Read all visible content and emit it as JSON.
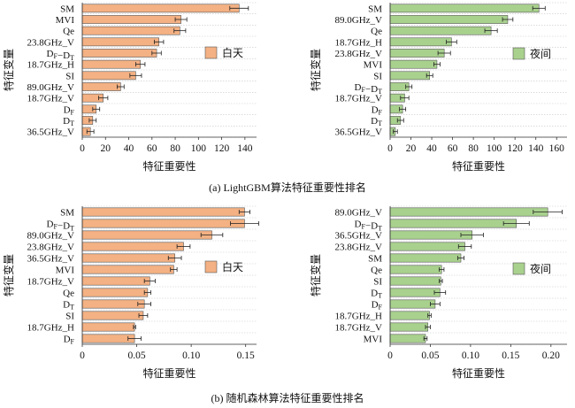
{
  "captions": {
    "a": "(a) LightGBM算法特征重要性排名",
    "b": "(b) 随机森林算法特征重要性排名"
  },
  "colors": {
    "day": "#F4B183",
    "night": "#A9D18E",
    "edge": "#555555",
    "error": "#222222"
  },
  "chart_data": [
    {
      "type": "bar",
      "orientation": "horizontal",
      "xlabel": "特征重要性",
      "ylabel": "特征变量",
      "legend": {
        "label": "白天",
        "placement": "right"
      },
      "xlim": [
        0,
        150
      ],
      "xticks": [
        0,
        20,
        40,
        60,
        80,
        100,
        120,
        140
      ],
      "xticklabels": [
        "0",
        "20",
        "40",
        "60",
        "80",
        "100",
        "120",
        "140"
      ],
      "categories": [
        "SM",
        "MVI",
        "Qe",
        "23.8GHz_V",
        "DF−DT",
        "18.7GHz_H",
        "SI",
        "89.0GHz_V",
        "18.7GHz_V",
        "DF",
        "DT",
        "36.5GHz_V"
      ],
      "values": [
        135,
        85,
        84,
        66,
        64,
        50,
        46,
        33,
        18,
        12,
        9,
        7
      ],
      "errors": [
        8,
        5,
        5,
        4,
        4,
        4,
        5,
        3,
        4,
        3,
        3,
        3
      ]
    },
    {
      "type": "bar",
      "orientation": "horizontal",
      "xlabel": "特征重要性",
      "ylabel": "特征变量",
      "legend": {
        "label": "夜间",
        "placement": "right"
      },
      "xlim": [
        0,
        170
      ],
      "xticks": [
        0,
        20,
        40,
        60,
        80,
        100,
        120,
        140,
        160
      ],
      "xticklabels": [
        "0",
        "20",
        "40",
        "60",
        "80",
        "100",
        "120",
        "140",
        "160"
      ],
      "categories": [
        "SM",
        "89.0GHz_V",
        "Qe",
        "18.7GHz_H",
        "23.8GHz_V",
        "MVI",
        "SI",
        "DF−DT",
        "18.7GHz_V",
        "DF",
        "DT",
        "36.5GHz_V"
      ],
      "values": [
        143,
        113,
        97,
        59,
        52,
        45,
        38,
        18,
        14,
        12,
        10,
        5
      ],
      "errors": [
        6,
        5,
        6,
        5,
        6,
        3,
        3,
        3,
        4,
        3,
        3,
        2
      ]
    },
    {
      "type": "bar",
      "orientation": "horizontal",
      "xlabel": "特征重要性",
      "ylabel": "特征变量",
      "legend": {
        "label": "白天",
        "placement": "right"
      },
      "xlim": [
        0,
        0.16
      ],
      "xticks": [
        0,
        0.05,
        0.1,
        0.15
      ],
      "xticklabels": [
        "0",
        "0.05",
        "0.10",
        "0.15"
      ],
      "categories": [
        "SM",
        "DF−DT",
        "89.0GHz_V",
        "23.8GHz_V",
        "36.5GHz_V",
        "MVI",
        "18.7GHz_V",
        "Qe",
        "DT",
        "SI",
        "18.7GHz_H",
        "DF"
      ],
      "values": [
        0.149,
        0.149,
        0.119,
        0.093,
        0.085,
        0.084,
        0.062,
        0.06,
        0.057,
        0.056,
        0.048,
        0.048
      ],
      "errors": [
        0.005,
        0.013,
        0.01,
        0.006,
        0.006,
        0.003,
        0.005,
        0.003,
        0.006,
        0.004,
        0.001,
        0.006
      ]
    },
    {
      "type": "bar",
      "orientation": "horizontal",
      "xlabel": "特征重要性",
      "ylabel": "特征变量",
      "legend": {
        "label": "夜间",
        "placement": "right"
      },
      "xlim": [
        0,
        0.22
      ],
      "xticks": [
        0,
        0.05,
        0.1,
        0.15,
        0.2
      ],
      "xticklabels": [
        "0",
        "0.05",
        "0.10",
        "0.15",
        "0.20"
      ],
      "categories": [
        "89.0GHz_V",
        "DF−DT",
        "36.5GHz_V",
        "23.8GHz_V",
        "SM",
        "Qe",
        "SI",
        "DT",
        "DF",
        "18.7GHz_H",
        "18.7GHz_V",
        "MVI"
      ],
      "values": [
        0.196,
        0.157,
        0.102,
        0.093,
        0.088,
        0.064,
        0.063,
        0.062,
        0.056,
        0.049,
        0.047,
        0.044
      ],
      "errors": [
        0.018,
        0.016,
        0.014,
        0.008,
        0.004,
        0.003,
        0.002,
        0.007,
        0.006,
        0.002,
        0.003,
        0.002
      ]
    }
  ]
}
